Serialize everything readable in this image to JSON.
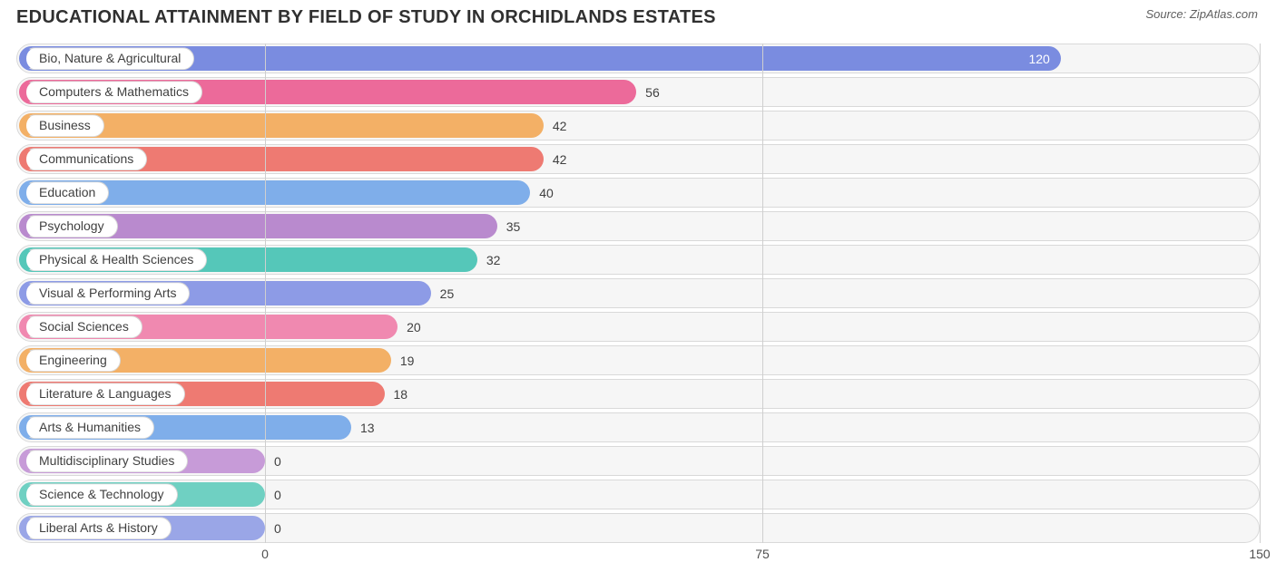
{
  "header": {
    "title": "EDUCATIONAL ATTAINMENT BY FIELD OF STUDY IN ORCHIDLANDS ESTATES",
    "source_prefix": "Source: ",
    "source_name": "ZipAtlas.com"
  },
  "chart": {
    "type": "bar",
    "orientation": "horizontal",
    "background_color": "#ffffff",
    "track_bg": "#f6f6f6",
    "track_border": "#d9d9d9",
    "grid_color": "#cfcfcf",
    "label_fontsize": 14,
    "label_color": "#404040",
    "xlim": [
      0,
      150
    ],
    "x_ticks": [
      0,
      75,
      150
    ],
    "label_origin_pct": 20.0,
    "bars": [
      {
        "label": "Bio, Nature & Agricultural",
        "value": 120,
        "color": "#7a8ce0",
        "value_inside": true
      },
      {
        "label": "Computers & Mathematics",
        "value": 56,
        "color": "#ec6a9a",
        "value_inside": false
      },
      {
        "label": "Business",
        "value": 42,
        "color": "#f3b066",
        "value_inside": false
      },
      {
        "label": "Communications",
        "value": 42,
        "color": "#ee7a72",
        "value_inside": false
      },
      {
        "label": "Education",
        "value": 40,
        "color": "#7faeea",
        "value_inside": false
      },
      {
        "label": "Psychology",
        "value": 35,
        "color": "#b98ace",
        "value_inside": false
      },
      {
        "label": "Physical & Health Sciences",
        "value": 32,
        "color": "#55c7b9",
        "value_inside": false
      },
      {
        "label": "Visual & Performing Arts",
        "value": 25,
        "color": "#8d9be6",
        "value_inside": false
      },
      {
        "label": "Social Sciences",
        "value": 20,
        "color": "#f089b0",
        "value_inside": false
      },
      {
        "label": "Engineering",
        "value": 19,
        "color": "#f3b066",
        "value_inside": false
      },
      {
        "label": "Literature & Languages",
        "value": 18,
        "color": "#ee7a72",
        "value_inside": false
      },
      {
        "label": "Arts & Humanities",
        "value": 13,
        "color": "#7faeea",
        "value_inside": false
      },
      {
        "label": "Multidisciplinary Studies",
        "value": 0,
        "color": "#c79bd8",
        "value_inside": false
      },
      {
        "label": "Science & Technology",
        "value": 0,
        "color": "#6fd0c2",
        "value_inside": false
      },
      {
        "label": "Liberal Arts & History",
        "value": 0,
        "color": "#9aa6e7",
        "value_inside": false
      }
    ]
  }
}
